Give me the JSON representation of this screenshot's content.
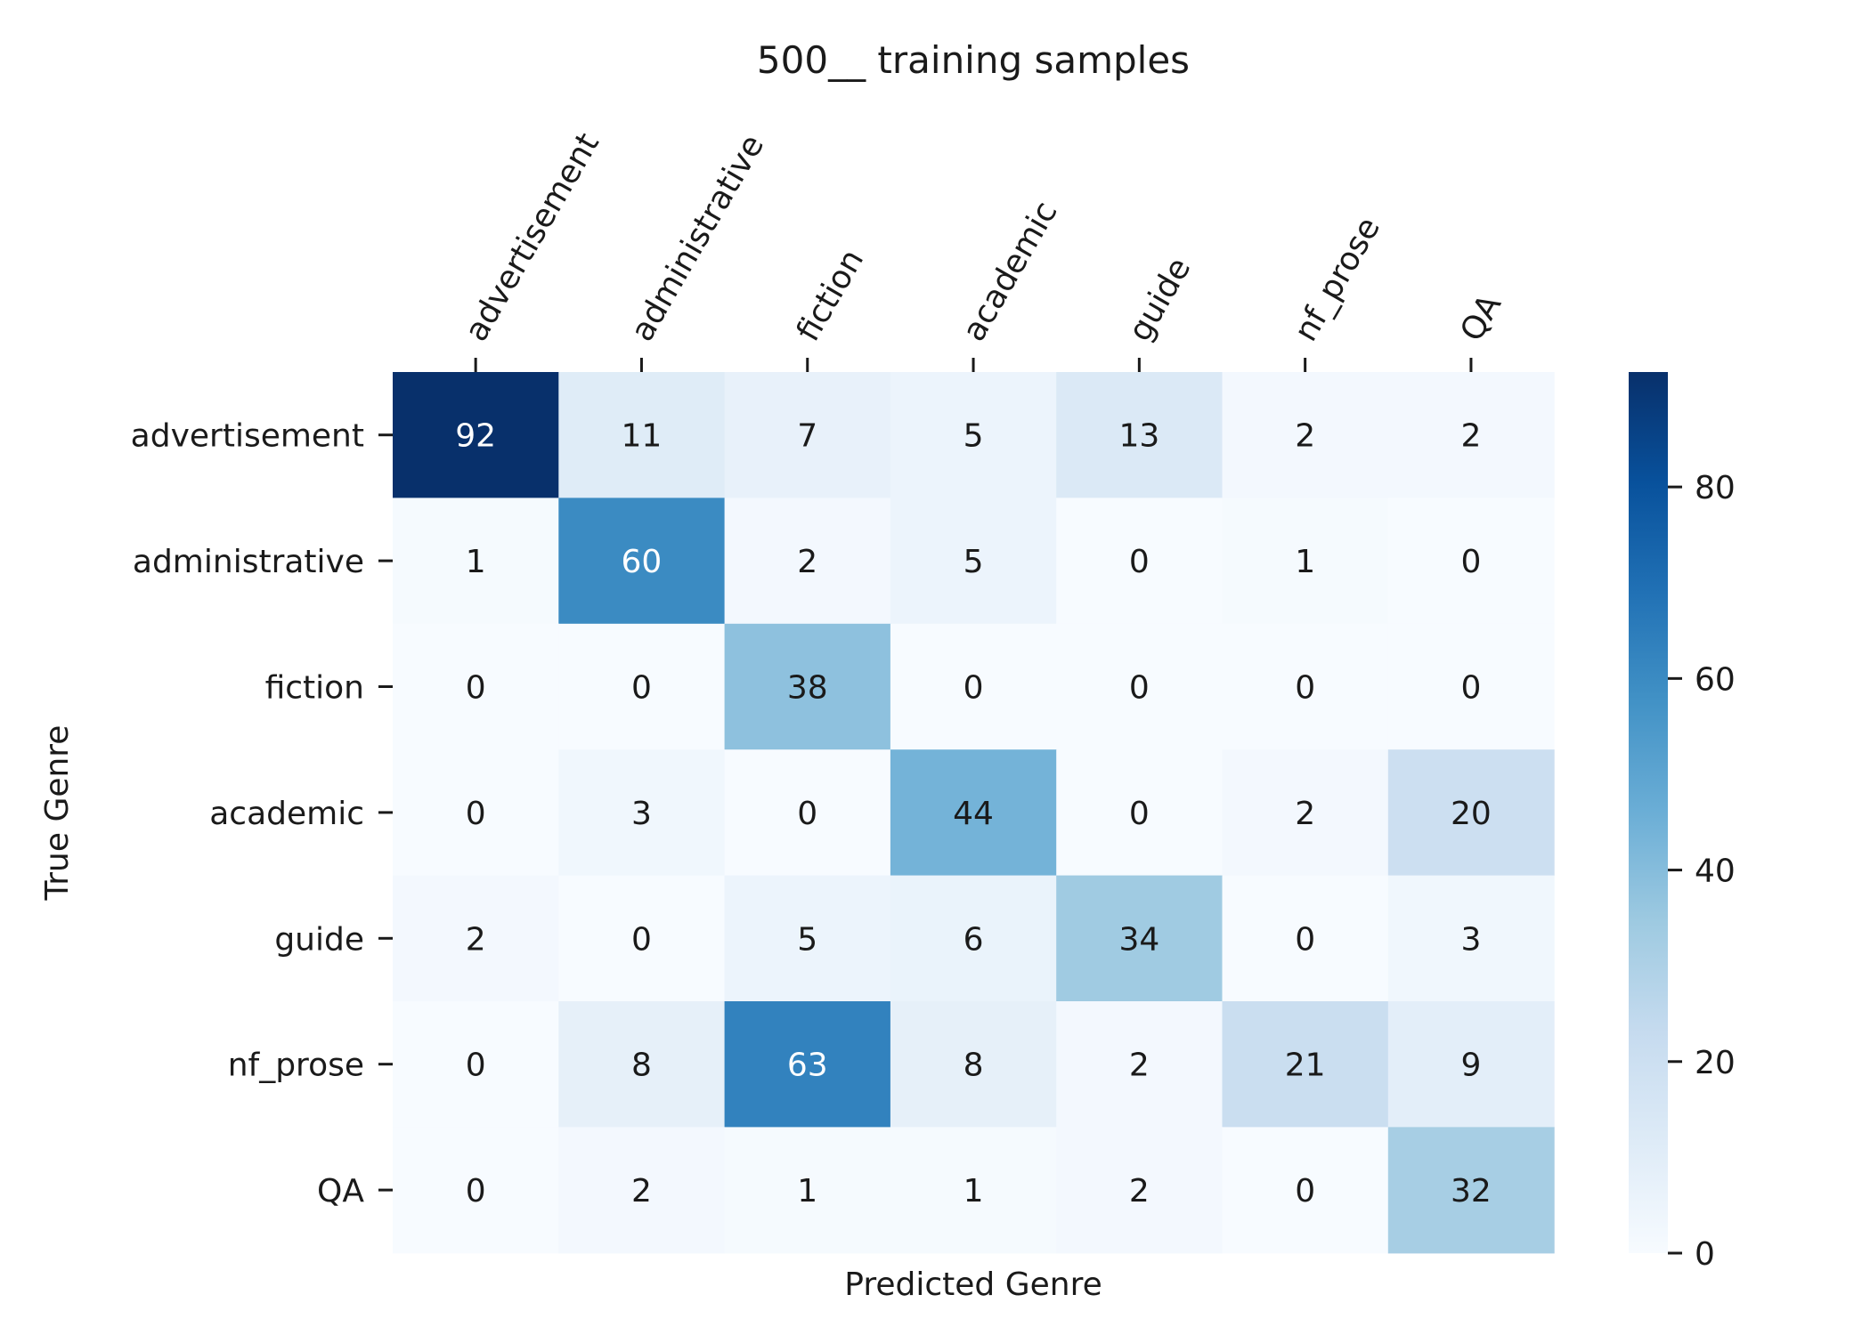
{
  "chart_data": {
    "type": "heatmap",
    "title": "500__ training samples",
    "xlabel": "Predicted Genre",
    "ylabel": "True Genre",
    "x_categories": [
      "advertisement",
      "administrative",
      "fiction",
      "academic",
      "guide",
      "nf_prose",
      "QA"
    ],
    "y_categories": [
      "advertisement",
      "administrative",
      "fiction",
      "academic",
      "guide",
      "nf_prose",
      "QA"
    ],
    "matrix": [
      [
        92,
        11,
        7,
        5,
        13,
        2,
        2
      ],
      [
        1,
        60,
        2,
        5,
        0,
        1,
        0
      ],
      [
        0,
        0,
        38,
        0,
        0,
        0,
        0
      ],
      [
        0,
        3,
        0,
        44,
        0,
        2,
        20
      ],
      [
        2,
        0,
        5,
        6,
        34,
        0,
        3
      ],
      [
        0,
        8,
        63,
        8,
        2,
        21,
        9
      ],
      [
        0,
        2,
        1,
        1,
        2,
        0,
        32
      ]
    ],
    "colormap": "Blues",
    "color_range": [
      0,
      92
    ],
    "colorbar_ticks": [
      0,
      20,
      40,
      60,
      80
    ],
    "x_tick_position": "top",
    "x_tick_rotation": 60,
    "annotated": true,
    "grid": false
  }
}
